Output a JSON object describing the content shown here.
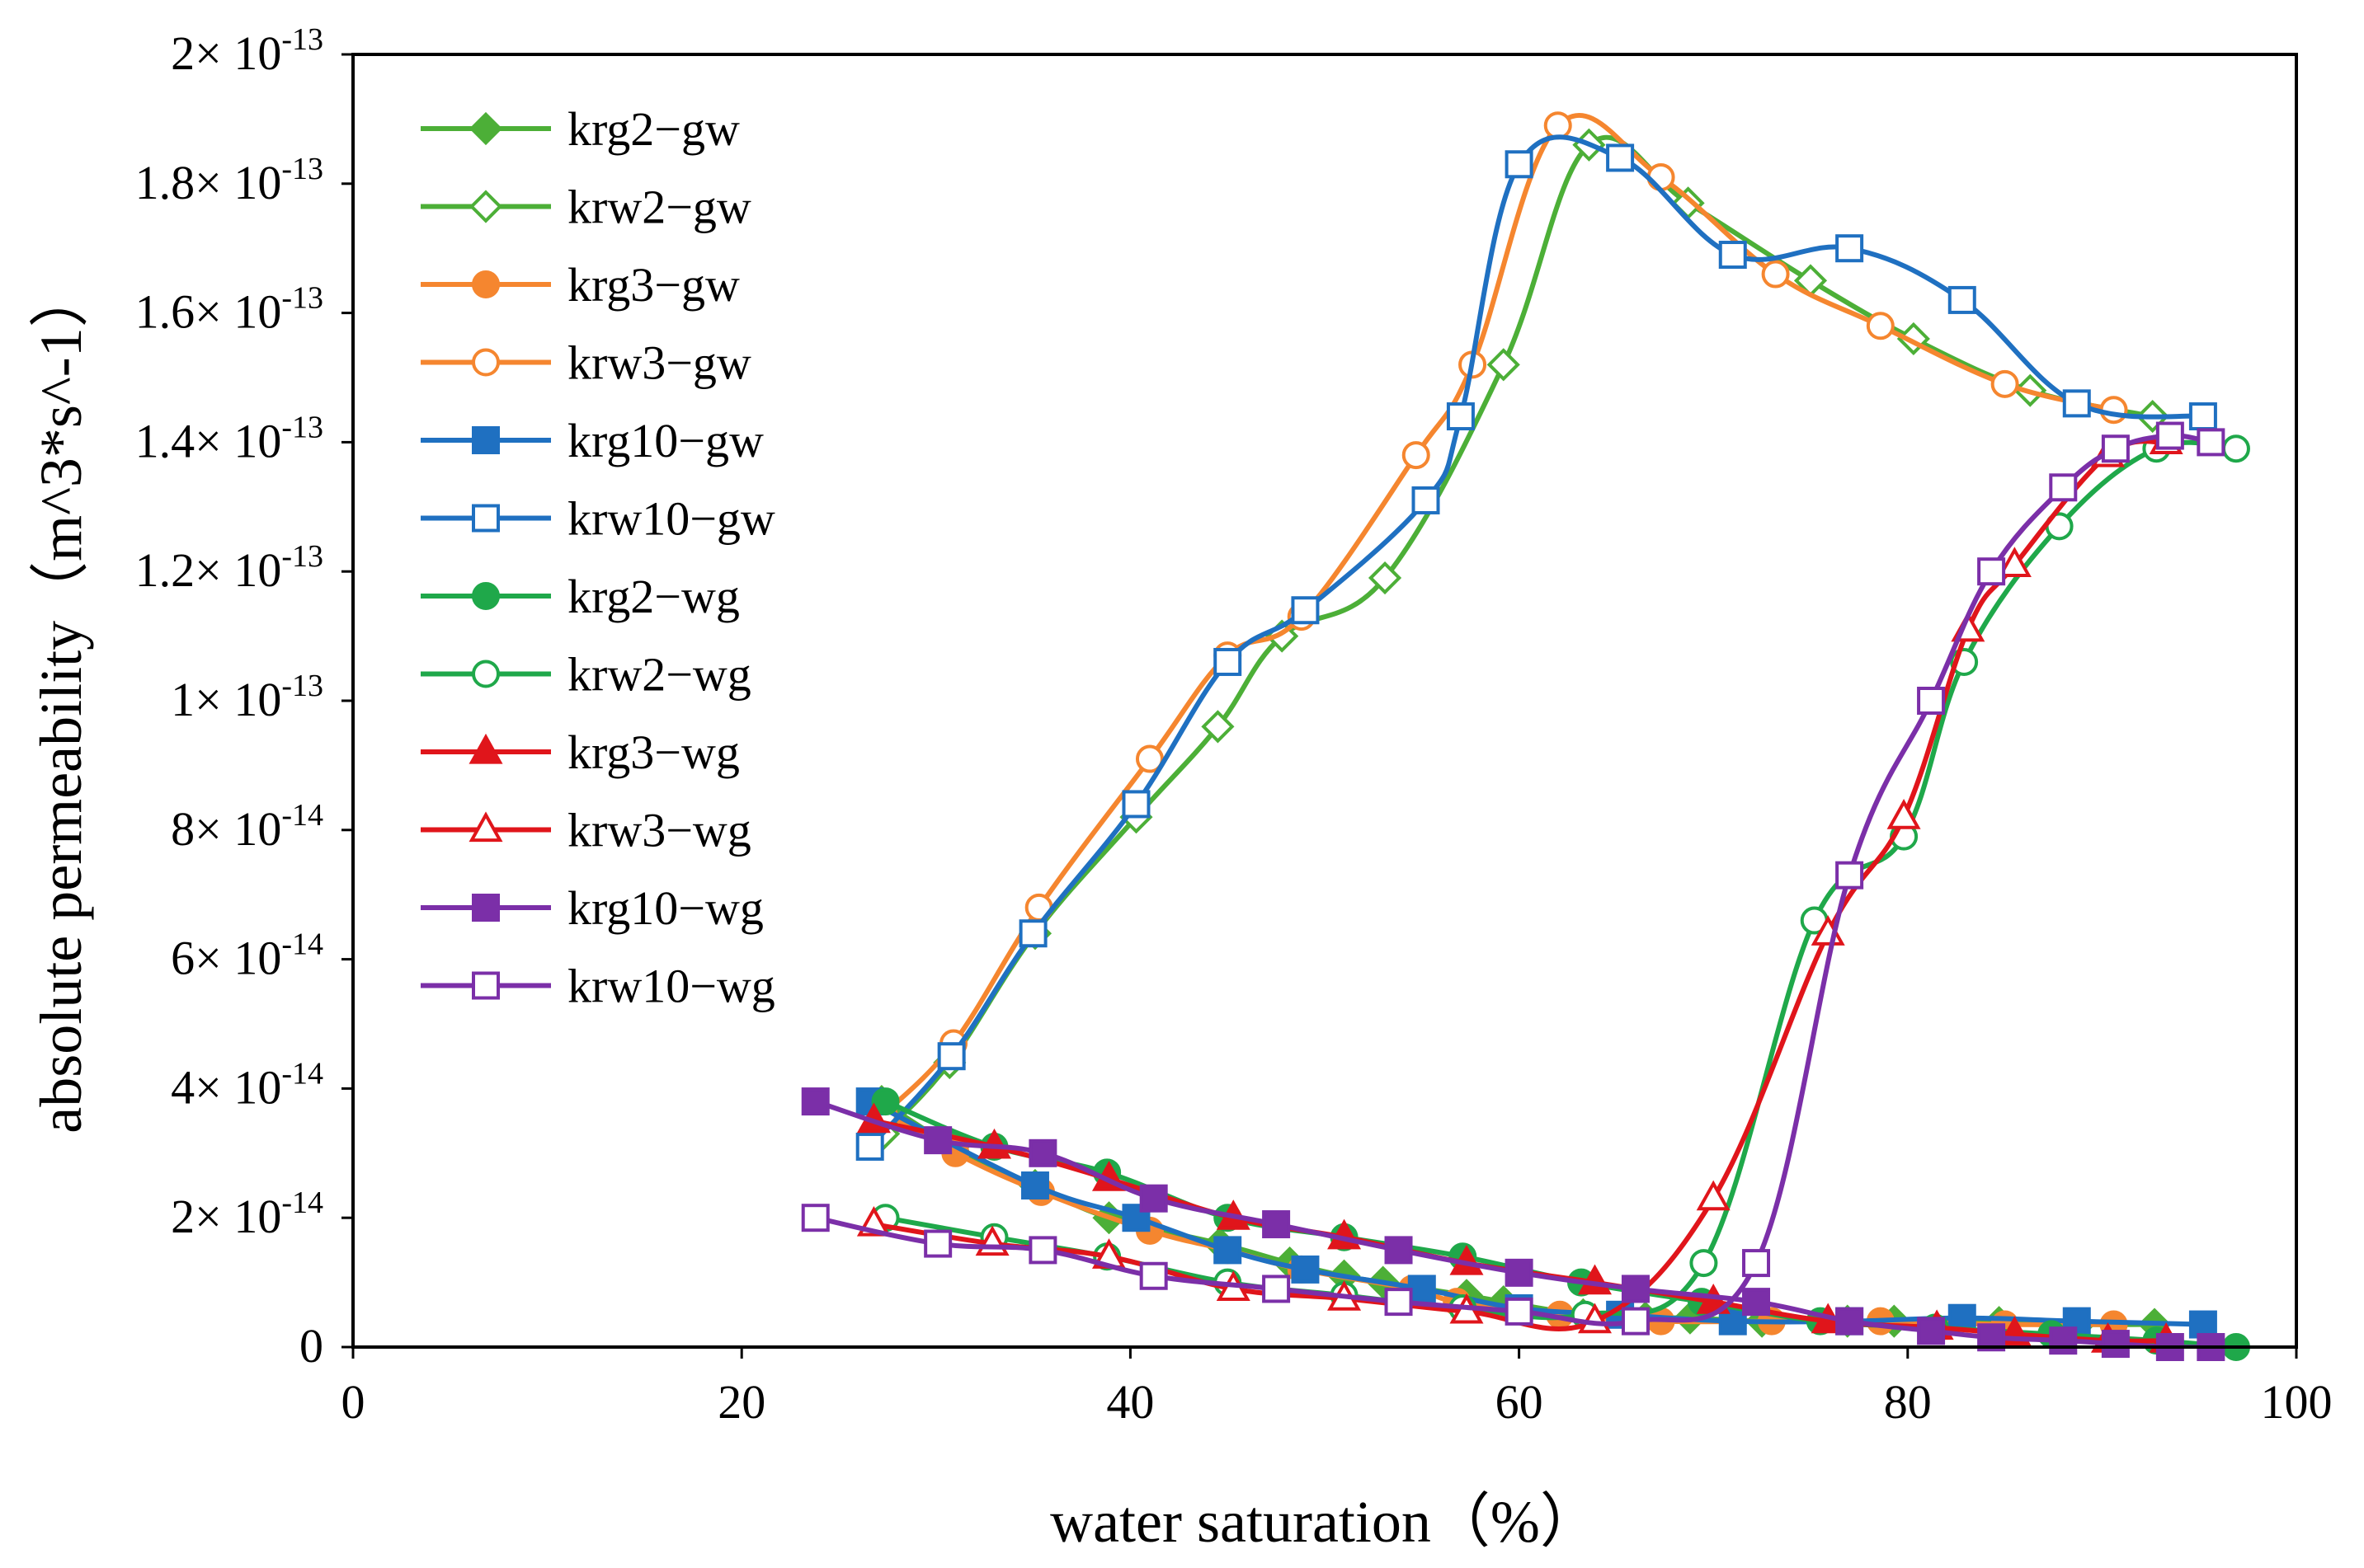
{
  "chart_data": {
    "type": "line",
    "title": "",
    "xlabel": "water saturation（%）",
    "ylabel": "absolute permeability（m^3*s^-1）",
    "xlim": [
      0,
      100
    ],
    "ylim": [
      0,
      2e-13
    ],
    "grid": false,
    "legend_position": "top-left",
    "x_ticks": [
      {
        "value": 0,
        "label": "0"
      },
      {
        "value": 20,
        "label": "20"
      },
      {
        "value": 40,
        "label": "40"
      },
      {
        "value": 60,
        "label": "60"
      },
      {
        "value": 80,
        "label": "80"
      },
      {
        "value": 100,
        "label": "100"
      }
    ],
    "y_ticks": [
      {
        "value": 0,
        "mant": "0",
        "exp": ""
      },
      {
        "value": 2e-14,
        "mant": "2× 10",
        "exp": "-14"
      },
      {
        "value": 4e-14,
        "mant": "4× 10",
        "exp": "-14"
      },
      {
        "value": 6e-14,
        "mant": "6× 10",
        "exp": "-14"
      },
      {
        "value": 8e-14,
        "mant": "8× 10",
        "exp": "-14"
      },
      {
        "value": 1e-13,
        "mant": "1× 10",
        "exp": "-13"
      },
      {
        "value": 1.2e-13,
        "mant": "1.2× 10",
        "exp": "-13"
      },
      {
        "value": 1.4e-13,
        "mant": "1.4× 10",
        "exp": "-13"
      },
      {
        "value": 1.6e-13,
        "mant": "1.6× 10",
        "exp": "-13"
      },
      {
        "value": 1.8e-13,
        "mant": "1.8× 10",
        "exp": "-13"
      },
      {
        "value": 2e-13,
        "mant": "2× 10",
        "exp": "-13"
      }
    ],
    "series": [
      {
        "name": "krg2−gw",
        "color": "#4caf37",
        "marker": "diamond",
        "filled": true,
        "x": [
          27.2,
          30.9,
          35.1,
          38.9,
          44.6,
          48.2,
          51.0,
          53.0,
          57.3,
          59.2,
          63.3,
          66.5,
          68.8,
          72.5,
          76.9,
          79.3,
          84.7,
          88.8,
          92.7
        ],
        "y": [
          3.8e-14,
          3.1e-14,
          2.5e-14,
          2e-14,
          1.6e-14,
          1.3e-14,
          1.1e-14,
          1e-14,
          8e-15,
          7e-15,
          5e-15,
          4.5e-15,
          4.5e-15,
          4e-15,
          4e-15,
          4e-15,
          3.8e-15,
          3.5e-15,
          3.5e-15
        ]
      },
      {
        "name": "krw2−gw",
        "color": "#4caf37",
        "marker": "diamond",
        "filled": false,
        "x": [
          27.3,
          30.7,
          35.1,
          40.3,
          44.5,
          47.8,
          53.1,
          59.2,
          63.6,
          68.7,
          75.0,
          80.3,
          86.3,
          92.6
        ],
        "y": [
          3.3e-14,
          4.4e-14,
          6.4e-14,
          8.2e-14,
          9.6e-14,
          1.1e-13,
          1.19e-13,
          1.52e-13,
          1.86e-13,
          1.77e-13,
          1.65e-13,
          1.56e-13,
          1.48e-13,
          1.44e-13
        ]
      },
      {
        "name": "krg3−gw",
        "color": "#f5862f",
        "marker": "circle",
        "filled": true,
        "x": [
          27.0,
          31.0,
          35.4,
          41.0,
          45.0,
          48.8,
          54.5,
          56.8,
          62.1,
          67.3,
          73.0,
          78.6,
          85.0,
          90.6
        ],
        "y": [
          3.7e-14,
          3e-14,
          2.4e-14,
          1.8e-14,
          1.5e-14,
          1.2e-14,
          9e-15,
          7e-15,
          5e-15,
          4e-15,
          4e-15,
          4e-15,
          3.5e-15,
          3.5e-15
        ]
      },
      {
        "name": "krw3−gw",
        "color": "#f5862f",
        "marker": "circle",
        "filled": false,
        "x": [
          27.3,
          30.9,
          35.3,
          41.0,
          45.0,
          48.8,
          54.7,
          57.6,
          62.0,
          67.3,
          73.2,
          78.6,
          85.0,
          90.6
        ],
        "y": [
          3.6e-14,
          4.7e-14,
          6.8e-14,
          9.1e-14,
          1.07e-13,
          1.13e-13,
          1.38e-13,
          1.52e-13,
          1.89e-13,
          1.81e-13,
          1.66e-13,
          1.58e-13,
          1.49e-13,
          1.45e-13
        ]
      },
      {
        "name": "krg10−gw",
        "color": "#1f70c1",
        "marker": "square",
        "filled": true,
        "x": [
          26.6,
          35.1,
          40.3,
          45.0,
          49.0,
          55.0,
          60.0,
          65.2,
          71.0,
          77.0,
          82.8,
          88.7,
          95.2
        ],
        "y": [
          3.8e-14,
          2.5e-14,
          2e-14,
          1.5e-14,
          1.2e-14,
          9e-15,
          6e-15,
          5e-15,
          4e-15,
          4e-15,
          4.5e-15,
          4e-15,
          3.5e-15
        ]
      },
      {
        "name": "krw10−gw",
        "color": "#1f70c1",
        "marker": "square",
        "filled": false,
        "x": [
          26.6,
          30.8,
          35.0,
          40.3,
          45.0,
          49.0,
          55.2,
          57.0,
          60.0,
          65.2,
          71.0,
          77.0,
          82.8,
          88.7,
          95.2
        ],
        "y": [
          3.1e-14,
          4.5e-14,
          6.4e-14,
          8.4e-14,
          1.06e-13,
          1.14e-13,
          1.31e-13,
          1.44e-13,
          1.83e-13,
          1.84e-13,
          1.69e-13,
          1.7e-13,
          1.62e-13,
          1.46e-13,
          1.44e-13
        ]
      },
      {
        "name": "krg2−wg",
        "color": "#1fa84a",
        "marker": "circle",
        "filled": true,
        "x": [
          27.4,
          33.0,
          38.8,
          45.0,
          51.0,
          57.1,
          63.2,
          69.4,
          75.5,
          81.4,
          87.4,
          92.8,
          96.9
        ],
        "y": [
          3.8e-14,
          3.1e-14,
          2.7e-14,
          2e-14,
          1.7e-14,
          1.4e-14,
          1e-14,
          7e-15,
          4e-15,
          3e-15,
          2e-15,
          1e-15,
          0
        ]
      },
      {
        "name": "krw2−wg",
        "color": "#1fa84a",
        "marker": "circle",
        "filled": false,
        "x": [
          27.4,
          33.0,
          38.8,
          45.0,
          51.0,
          57.1,
          63.4,
          69.5,
          75.2,
          79.8,
          82.9,
          87.8,
          92.8,
          96.9
        ],
        "y": [
          2e-14,
          1.7e-14,
          1.4e-14,
          1e-14,
          8e-15,
          6e-15,
          5e-15,
          1.3e-14,
          6.6e-14,
          7.9e-14,
          1.06e-13,
          1.27e-13,
          1.39e-13,
          1.39e-13
        ]
      },
      {
        "name": "krg3−wg",
        "color": "#e0151b",
        "marker": "triangle",
        "filled": true,
        "x": [
          26.8,
          33.0,
          38.9,
          45.3,
          51.0,
          57.3,
          63.9,
          70.0,
          75.9,
          81.5,
          85.5,
          90.3,
          93.3
        ],
        "y": [
          3.5e-14,
          3.1e-14,
          2.6e-14,
          2e-14,
          1.7e-14,
          1.3e-14,
          1e-14,
          7e-15,
          4e-15,
          3e-15,
          2e-15,
          1e-15,
          1e-15
        ]
      },
      {
        "name": "krw3−wg",
        "color": "#e0151b",
        "marker": "triangle",
        "filled": false,
        "x": [
          26.8,
          32.9,
          38.9,
          45.3,
          51.0,
          57.3,
          63.9,
          70.0,
          75.9,
          79.8,
          83.1,
          85.5,
          90.3,
          93.3
        ],
        "y": [
          1.9e-14,
          1.6e-14,
          1.4e-14,
          9e-15,
          7.5e-15,
          5.5e-15,
          4e-15,
          2.3e-14,
          6.4e-14,
          8.2e-14,
          1.11e-13,
          1.21e-13,
          1.38e-13,
          1.4e-13
        ]
      },
      {
        "name": "krg10−wg",
        "color": "#7b2fa8",
        "marker": "square",
        "filled": true,
        "x": [
          23.8,
          30.1,
          35.5,
          41.2,
          47.5,
          53.8,
          60.0,
          66.0,
          72.2,
          77.0,
          81.2,
          84.3,
          88.0,
          90.7,
          93.5,
          95.6
        ],
        "y": [
          3.8e-14,
          3.2e-14,
          3e-14,
          2.3e-14,
          1.9e-14,
          1.5e-14,
          1.15e-14,
          9e-15,
          7e-15,
          4e-15,
          2.5e-15,
          1.5e-15,
          1e-15,
          5e-16,
          0,
          0
        ]
      },
      {
        "name": "krw10−wg",
        "color": "#7b2fa8",
        "marker": "square",
        "filled": false,
        "x": [
          23.8,
          30.1,
          35.5,
          41.2,
          47.5,
          53.8,
          60.0,
          66.0,
          72.2,
          77.0,
          81.2,
          84.3,
          88.0,
          90.7,
          93.5,
          95.6
        ],
        "y": [
          2e-14,
          1.6e-14,
          1.5e-14,
          1.1e-14,
          9e-15,
          7e-15,
          5.5e-15,
          4e-15,
          1.3e-14,
          7.3e-14,
          1e-13,
          1.2e-13,
          1.33e-13,
          1.39e-13,
          1.41e-13,
          1.4e-13
        ]
      }
    ]
  }
}
